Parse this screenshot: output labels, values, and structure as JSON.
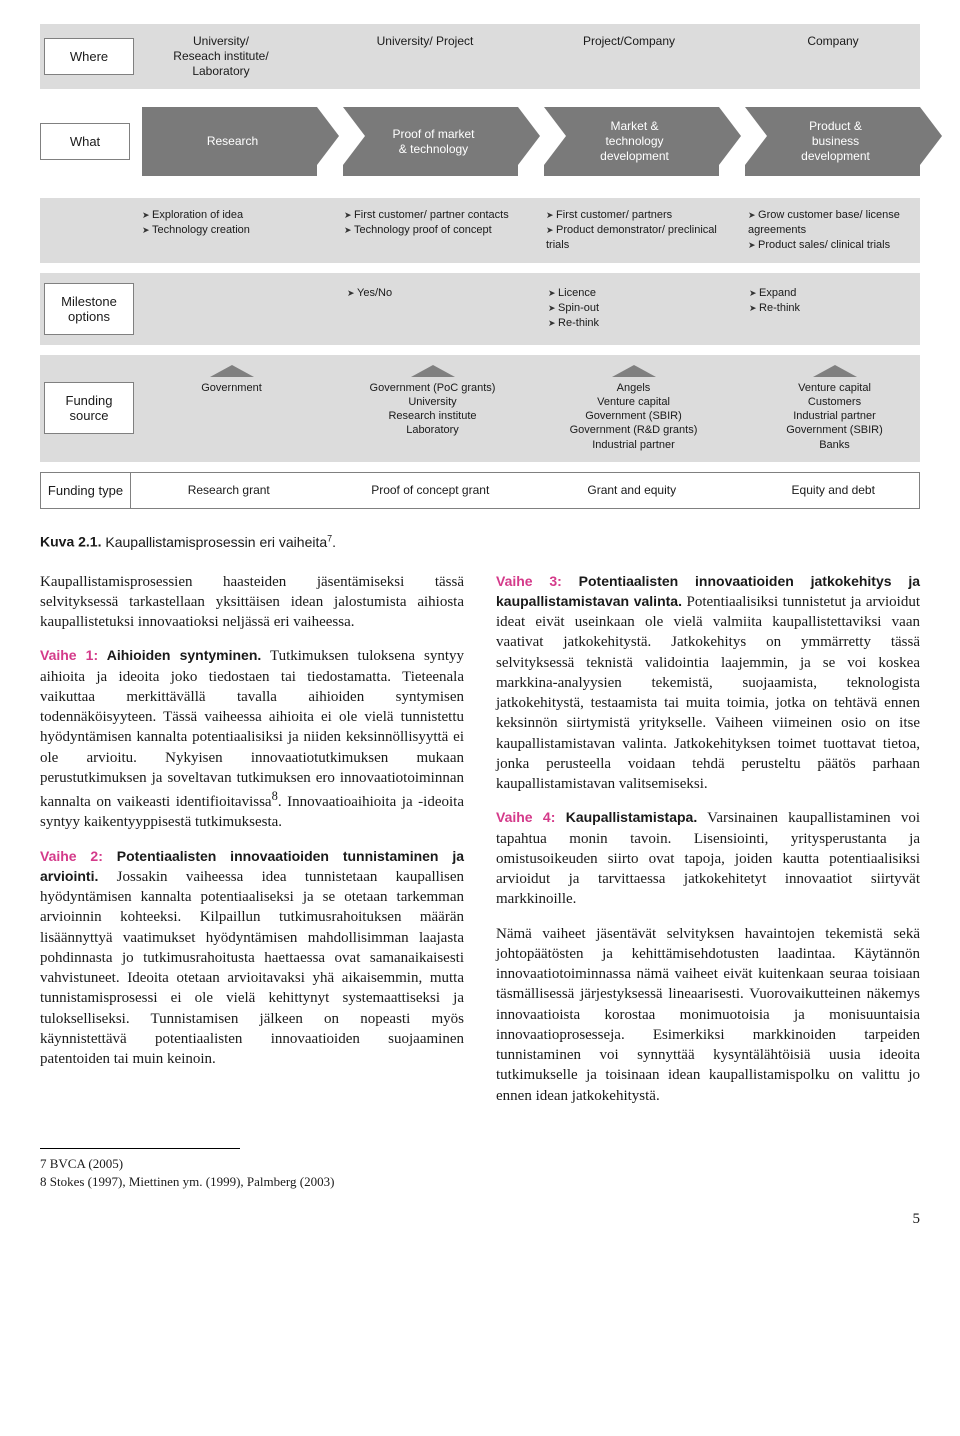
{
  "diagram": {
    "row_labels": {
      "where": "Where",
      "what": "What",
      "milestone": "Milestone options",
      "funding_source": "Funding source",
      "funding_type": "Funding type"
    },
    "where_cells": [
      "University/\nReseach institute/\nLaboratory",
      "University/ Project",
      "Project/Company",
      "Company"
    ],
    "what_cells": [
      "Research",
      "Proof of market\n& technology",
      "Market &\ntechnology\ndevelopment",
      "Product &\nbusiness\ndevelopment"
    ],
    "activities": [
      [
        "Exploration of idea",
        "Technology creation"
      ],
      [
        "First customer/ partner contacts",
        "Technology proof of concept"
      ],
      [
        "First customer/ partners",
        "Product demonstrator/ preclinical trials"
      ],
      [
        "Grow customer base/ license agreements",
        "Product sales/ clinical trials"
      ]
    ],
    "milestone_cells": [
      [],
      [
        "Yes/No"
      ],
      [
        "Licence",
        "Spin-out",
        "Re-think"
      ],
      [
        "Expand",
        "Re-think"
      ]
    ],
    "funding_source_cells": [
      "Government",
      "Government (PoC grants)\nUniversity\nResearch institute\nLaboratory",
      "Angels\nVenture capital\nGovernment (SBIR)\nGovernment (R&D grants)\nIndustrial partner",
      "Venture capital\nCustomers\nIndustrial partner\nGovernment (SBIR)\nBanks"
    ],
    "funding_type_cells": [
      "Research grant",
      "Proof of concept grant",
      "Grant and equity",
      "Equity and debt"
    ],
    "colors": {
      "band_bg": "#dcdcdc",
      "arrow_bg": "#7a7a7a",
      "arrow_text": "#ffffff",
      "triangle": "#808080",
      "border": "#808080"
    }
  },
  "caption": {
    "prefix": "Kuva 2.1.",
    "text": "Kaupallistamisprosessin eri vaiheita",
    "superscript": "7",
    "suffix": "."
  },
  "left_column": {
    "intro": "Kaupallistamisprosessien haasteiden jäsentämiseksi tässä selvityksessä tarkastellaan yksittäisen idean jalostumista aihiosta kaupallistetuksi innovaatioksi neljässä eri vaiheessa.",
    "v1_label": "Vaihe 1:",
    "v1_title": "Aihioiden syntyminen.",
    "v1_text": "Tutkimuksen tuloksena syntyy aihioita ja ideoita joko tiedostaen tai tiedostamatta. Tieteenala vaikuttaa merkittävällä tavalla aihioiden syntymisen todennäköisyyteen. Tässä vaiheessa aihioita ei ole vielä tunnistettu hyödyntämisen kannalta potentiaalisiksi ja niiden keksinnöllisyyttä ei ole arvioitu. Nykyisen innovaatiotutkimuksen mukaan perustutkimuksen ja soveltavan tutkimuksen ero innovaatiotoiminnan kannalta on vaikeasti identifioitavissa",
    "v1_sup": "8",
    "v1_tail": ". Innovaatioaihioita ja -ideoita syntyy kaikentyyppisestä tutkimuksesta.",
    "v2_label": "Vaihe 2:",
    "v2_title": "Potentiaalisten innovaatioiden tunnistaminen ja arviointi.",
    "v2_text": "Jossakin vaiheessa idea tunnistetaan kaupallisen hyödyntämisen kannalta potentiaaliseksi ja se otetaan tarkemman arvioinnin kohteeksi. Kilpaillun tutkimusrahoituksen määrän lisäännyttyä vaatimukset hyödyntämisen mahdollisimman laajasta pohdinnasta jo tutkimusrahoitusta haettaessa ovat samanaikaisesti vahvistuneet. Ideoita otetaan arvioitavaksi yhä aikaisemmin, mutta tunnistamisprosessi ei ole vielä kehittynyt systemaattiseksi ja tulokselliseksi. Tunnistamisen jälkeen on nopeasti myös käynnistettävä potentiaalisten innovaatioiden suojaaminen patentoiden tai muin keinoin."
  },
  "right_column": {
    "v3_label": "Vaihe 3:",
    "v3_title": "Potentiaalisten innovaatioiden jatkokehitys ja kaupallistamistavan valinta.",
    "v3_text": "Potentiaalisiksi tunnistetut ja arvioidut ideat eivät useinkaan ole vielä valmiita kaupallistettaviksi vaan vaativat jatkokehitystä. Jatkokehitys on ymmärretty tässä selvityksessä teknistä validointia laajemmin, ja se voi koskea markkina-analyysien tekemistä, suojaamista, teknologista jatkokehitystä, testaamista tai muita toimia, jotka on tehtävä ennen keksinnön siirtymistä yritykselle. Vaiheen viimeinen osio on itse kaupallistamistavan valinta. Jatkokehityksen toimet tuottavat tietoa, jonka perusteella voidaan tehdä perusteltu päätös parhaan kaupallistamistavan valitsemiseksi.",
    "v4_label": "Vaihe 4:",
    "v4_title": "Kaupallistamistapa.",
    "v4_text": "Varsinainen kaupallistaminen voi tapahtua monin tavoin. Lisensiointi, yritysperustanta ja omistusoikeuden siirto ovat tapoja, joiden kautta potentiaalisiksi arvioidut ja tarvittaessa jatkokehitetyt innovaatiot siirtyvät markkinoille.",
    "closing": "Nämä vaiheet jäsentävät selvityksen havaintojen tekemistä sekä johtopäätösten ja kehittämisehdotusten laadintaa. Käytännön innovaatiotoiminnassa nämä vaiheet eivät kuitenkaan seuraa toisiaan täsmällisessä järjestyksessä lineaarisesti. Vuorovaikutteinen näkemys innovaatioista korostaa monimuotoisia ja monisuuntaisia innovaatioprosesseja. Esimerkiksi markkinoiden tarpeiden tunnistaminen voi synnyttää kysyntälähtöisiä uusia ideoita tutkimukselle ja toisinaan idean kaupallistamispolku on valittu jo ennen idean jatkokehitystä."
  },
  "footnotes": "7      BVCA (2005)\n8      Stokes (1997), Miettinen ym. (1999), Palmberg (2003)",
  "page_number": "5",
  "accent_color": "#d43a8a"
}
